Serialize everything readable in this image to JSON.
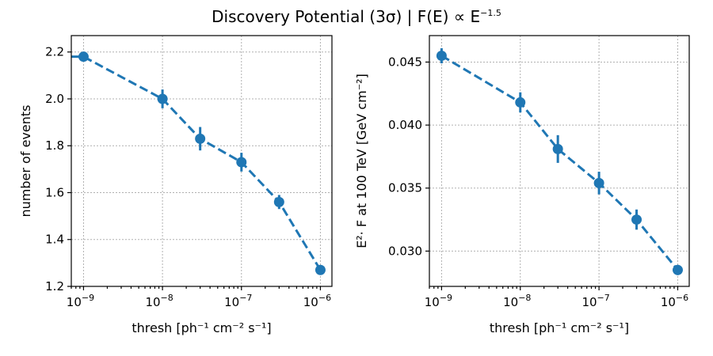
{
  "figure": {
    "title_prefix": "Discovery Potential (3σ) | F(E) ∝ E",
    "title_exponent": "−1.5"
  },
  "chart_data": [
    {
      "type": "line",
      "xlabel": "thresh    [ph⁻¹ cm⁻² s⁻¹]",
      "ylabel": "number of events",
      "xscale": "log",
      "xlim": [
        7e-10,
        1.4e-06
      ],
      "ylim": [
        1.2,
        2.27
      ],
      "xticks": [
        1e-09,
        1e-08,
        1e-07,
        1e-06
      ],
      "xtick_labels": [
        "10",
        "10",
        "10",
        "10"
      ],
      "xtick_exponents": [
        "−9",
        "−8",
        "−7",
        "−6"
      ],
      "yticks": [
        1.2,
        1.4,
        1.6,
        1.8,
        2.0,
        2.2
      ],
      "ytick_labels": [
        "1.2",
        "1.4",
        "1.6",
        "1.8",
        "2.0",
        "2.2"
      ],
      "grid": true,
      "color": "#1f77b4",
      "line_style": "dashed",
      "series": [
        {
          "x": [
            1e-09,
            1e-08,
            3e-08,
            1e-07,
            3e-07,
            1e-06
          ],
          "y": [
            2.18,
            2.0,
            1.83,
            1.73,
            1.56,
            1.27
          ],
          "yerr": [
            0.02,
            0.04,
            0.05,
            0.04,
            0.03,
            0.015
          ]
        }
      ],
      "line_start_x": 7e-10,
      "line_start_y": 2.18
    },
    {
      "type": "line",
      "xlabel": "thresh    [ph⁻¹ cm⁻² s⁻¹]",
      "ylabel": "E²· F at 100 TeV   [GeV cm⁻²]",
      "xscale": "log",
      "xlim": [
        7e-10,
        1.4e-06
      ],
      "ylim": [
        0.0272,
        0.0471
      ],
      "xticks": [
        1e-09,
        1e-08,
        1e-07,
        1e-06
      ],
      "xtick_labels": [
        "10",
        "10",
        "10",
        "10"
      ],
      "xtick_exponents": [
        "−9",
        "−8",
        "−7",
        "−6"
      ],
      "yticks": [
        0.03,
        0.035,
        0.04,
        0.045
      ],
      "ytick_labels": [
        "0.030",
        "0.035",
        "0.040",
        "0.045"
      ],
      "grid": true,
      "color": "#1f77b4",
      "line_style": "dashed",
      "series": [
        {
          "x": [
            1e-09,
            1e-08,
            3e-08,
            1e-07,
            3e-07,
            1e-06
          ],
          "y": [
            0.0455,
            0.0418,
            0.0381,
            0.0354,
            0.0325,
            0.0285
          ],
          "yerr": [
            0.0006,
            0.0008,
            0.0011,
            0.0009,
            0.0008,
            0.0004
          ]
        }
      ]
    }
  ]
}
